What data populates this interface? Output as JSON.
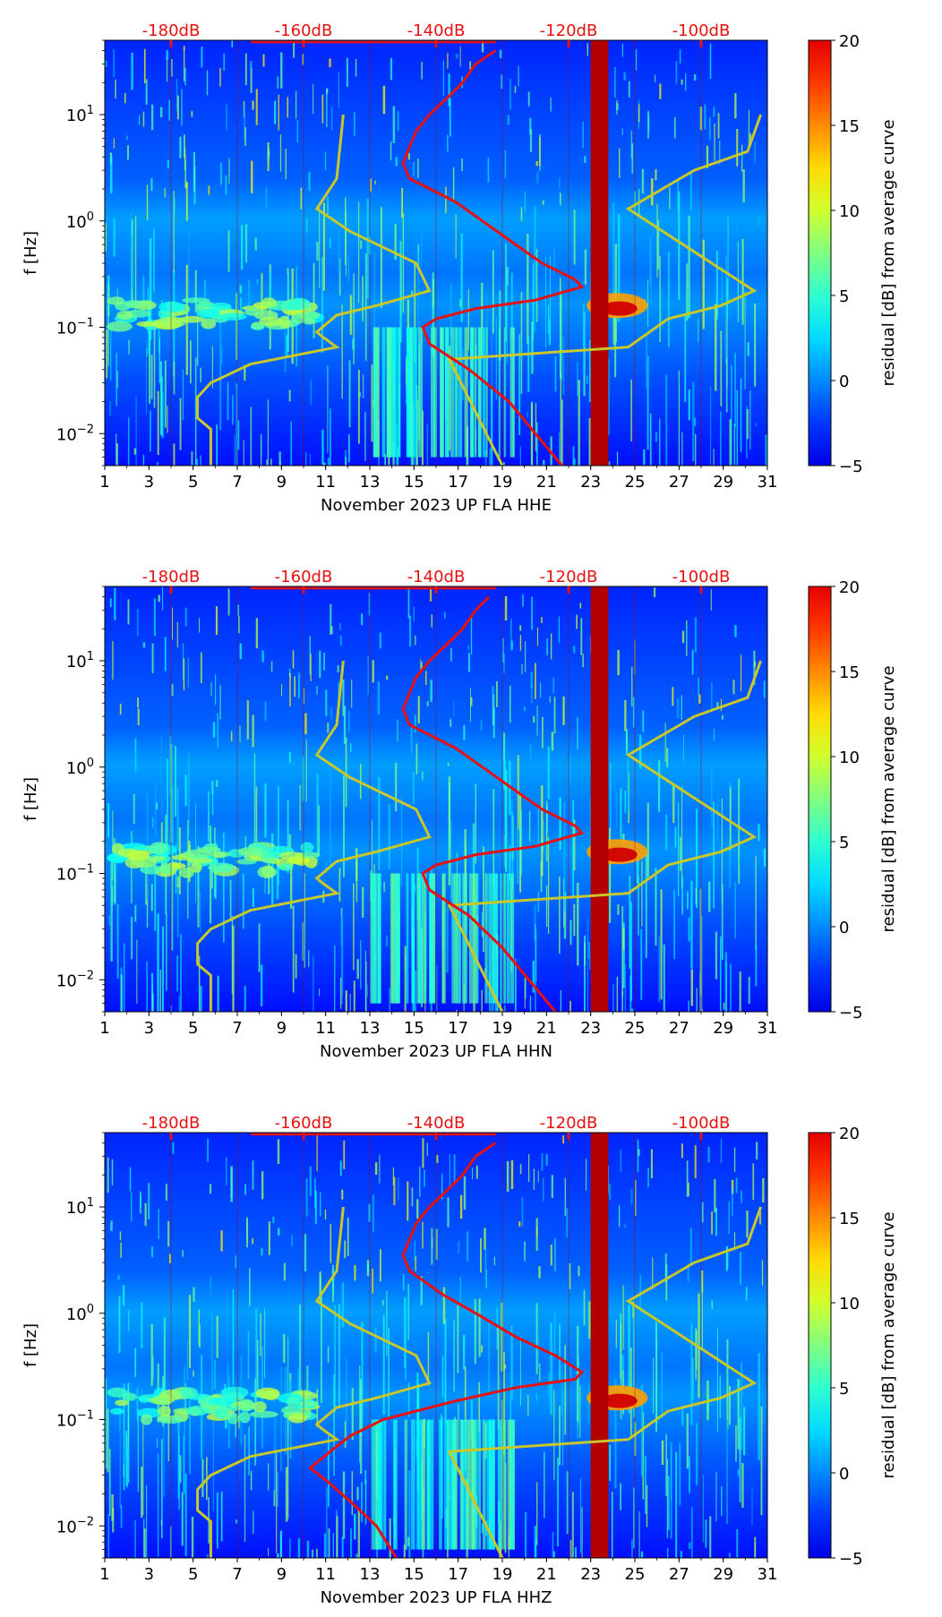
{
  "figure": {
    "background": "#ffffff"
  },
  "chart_data": [
    {
      "type": "heatmap",
      "xlabel": "November 2023 UP FLA  HHE",
      "ylabel": "f [Hz]",
      "x_ticks": [
        "1",
        "3",
        "5",
        "7",
        "9",
        "11",
        "13",
        "15",
        "17",
        "19",
        "21",
        "23",
        "25",
        "27",
        "29",
        "31"
      ],
      "x_range": [
        1,
        31
      ],
      "y_ticks": [
        "10^-2",
        "10^-1",
        "10^0",
        "10^1"
      ],
      "y_range": [
        0.005,
        50
      ],
      "y_scale": "log",
      "top_ticks": [
        "-180dB",
        "-160dB",
        "-140dB",
        "-120dB",
        "-100dB"
      ],
      "top_range_dB": [
        -190,
        -90
      ],
      "colorbar": {
        "label": "residual [dB] from average curve",
        "ticks": [
          "-5",
          "0",
          "5",
          "10",
          "15",
          "20"
        ],
        "range": [
          -5,
          20
        ]
      },
      "blocked_day": 23,
      "noise_model_high": [
        [
          10,
          -154
        ],
        [
          2.5,
          -155
        ],
        [
          1.3,
          -158
        ],
        [
          0.8,
          -153
        ],
        [
          0.4,
          -143
        ],
        [
          0.22,
          -141
        ],
        [
          0.16,
          -149
        ],
        [
          0.13,
          -155
        ],
        [
          0.09,
          -158
        ],
        [
          0.08,
          -157
        ],
        [
          0.065,
          -155
        ],
        [
          0.045,
          -168
        ],
        [
          0.03,
          -174
        ],
        [
          0.022,
          -176
        ],
        [
          0.014,
          -176
        ],
        [
          0.011,
          -174
        ],
        [
          0.008,
          -174
        ],
        [
          0.005,
          -174
        ]
      ],
      "noise_model_low": [
        [
          10,
          -91
        ],
        [
          4.5,
          -93
        ],
        [
          3,
          -101
        ],
        [
          1.3,
          -111
        ],
        [
          0.22,
          -92
        ],
        [
          0.16,
          -97
        ],
        [
          0.12,
          -105
        ],
        [
          0.065,
          -111
        ],
        [
          0.05,
          -138
        ],
        [
          0.005,
          -130
        ]
      ],
      "mean_curve": [
        [
          40,
          -131
        ],
        [
          30,
          -134
        ],
        [
          20,
          -136
        ],
        [
          15,
          -138
        ],
        [
          10,
          -141
        ],
        [
          7,
          -143
        ],
        [
          5,
          -144
        ],
        [
          3.5,
          -145
        ],
        [
          2.5,
          -144
        ],
        [
          1.5,
          -137
        ],
        [
          1,
          -133
        ],
        [
          0.6,
          -128
        ],
        [
          0.4,
          -124
        ],
        [
          0.28,
          -119
        ],
        [
          0.24,
          -118
        ],
        [
          0.18,
          -125
        ],
        [
          0.15,
          -134
        ],
        [
          0.12,
          -140
        ],
        [
          0.1,
          -142
        ],
        [
          0.07,
          -141
        ],
        [
          0.04,
          -135
        ],
        [
          0.02,
          -129
        ],
        [
          0.01,
          -125
        ],
        [
          0.005,
          -121
        ]
      ]
    },
    {
      "type": "heatmap",
      "xlabel": "November 2023 UP FLA  HHN",
      "ylabel": "f [Hz]",
      "x_ticks": [
        "1",
        "3",
        "5",
        "7",
        "9",
        "11",
        "13",
        "15",
        "17",
        "19",
        "21",
        "23",
        "25",
        "27",
        "29",
        "31"
      ],
      "x_range": [
        1,
        31
      ],
      "y_ticks": [
        "10^-2",
        "10^-1",
        "10^0",
        "10^1"
      ],
      "y_range": [
        0.005,
        50
      ],
      "y_scale": "log",
      "top_ticks": [
        "-180dB",
        "-160dB",
        "-140dB",
        "-120dB",
        "-100dB"
      ],
      "top_range_dB": [
        -190,
        -90
      ],
      "colorbar": {
        "label": "residual [dB] from average curve",
        "ticks": [
          "-5",
          "0",
          "5",
          "10",
          "15",
          "20"
        ],
        "range": [
          -5,
          20
        ]
      },
      "blocked_day": 23,
      "noise_model_high": [
        [
          10,
          -154
        ],
        [
          2.5,
          -155
        ],
        [
          1.3,
          -158
        ],
        [
          0.8,
          -153
        ],
        [
          0.4,
          -143
        ],
        [
          0.22,
          -141
        ],
        [
          0.16,
          -149
        ],
        [
          0.13,
          -155
        ],
        [
          0.09,
          -158
        ],
        [
          0.08,
          -157
        ],
        [
          0.065,
          -155
        ],
        [
          0.045,
          -168
        ],
        [
          0.03,
          -174
        ],
        [
          0.022,
          -176
        ],
        [
          0.014,
          -176
        ],
        [
          0.011,
          -174
        ],
        [
          0.008,
          -174
        ],
        [
          0.005,
          -174
        ]
      ],
      "noise_model_low": [
        [
          10,
          -91
        ],
        [
          4.5,
          -93
        ],
        [
          3,
          -101
        ],
        [
          1.3,
          -111
        ],
        [
          0.22,
          -92
        ],
        [
          0.16,
          -97
        ],
        [
          0.12,
          -105
        ],
        [
          0.065,
          -111
        ],
        [
          0.05,
          -138
        ],
        [
          0.005,
          -130
        ]
      ],
      "mean_curve": [
        [
          40,
          -132
        ],
        [
          30,
          -134
        ],
        [
          20,
          -136
        ],
        [
          15,
          -138
        ],
        [
          10,
          -141
        ],
        [
          7,
          -143
        ],
        [
          5,
          -144
        ],
        [
          3.5,
          -145
        ],
        [
          2.5,
          -144
        ],
        [
          1.5,
          -137
        ],
        [
          1,
          -133
        ],
        [
          0.6,
          -128
        ],
        [
          0.4,
          -124
        ],
        [
          0.28,
          -119
        ],
        [
          0.24,
          -118
        ],
        [
          0.18,
          -125
        ],
        [
          0.15,
          -134
        ],
        [
          0.12,
          -140
        ],
        [
          0.1,
          -142
        ],
        [
          0.07,
          -141
        ],
        [
          0.04,
          -135
        ],
        [
          0.02,
          -130
        ],
        [
          0.01,
          -126
        ],
        [
          0.005,
          -122
        ]
      ]
    },
    {
      "type": "heatmap",
      "xlabel": "November 2023 UP FLA  HHZ",
      "ylabel": "f [Hz]",
      "x_ticks": [
        "1",
        "3",
        "5",
        "7",
        "9",
        "11",
        "13",
        "15",
        "17",
        "19",
        "21",
        "23",
        "25",
        "27",
        "29",
        "31"
      ],
      "x_range": [
        1,
        31
      ],
      "y_ticks": [
        "10^-2",
        "10^-1",
        "10^0",
        "10^1"
      ],
      "y_range": [
        0.005,
        50
      ],
      "y_scale": "log",
      "top_ticks": [
        "-180dB",
        "-160dB",
        "-140dB",
        "-120dB",
        "-100dB"
      ],
      "top_range_dB": [
        -190,
        -90
      ],
      "colorbar": {
        "label": "residual [dB] from average curve",
        "ticks": [
          "-5",
          "0",
          "5",
          "10",
          "15",
          "20"
        ],
        "range": [
          -5,
          20
        ]
      },
      "blocked_day": 23,
      "noise_model_high": [
        [
          10,
          -154
        ],
        [
          2.5,
          -155
        ],
        [
          1.3,
          -158
        ],
        [
          0.8,
          -153
        ],
        [
          0.4,
          -143
        ],
        [
          0.22,
          -141
        ],
        [
          0.16,
          -149
        ],
        [
          0.13,
          -155
        ],
        [
          0.09,
          -158
        ],
        [
          0.08,
          -157
        ],
        [
          0.065,
          -155
        ],
        [
          0.045,
          -168
        ],
        [
          0.03,
          -174
        ],
        [
          0.022,
          -176
        ],
        [
          0.014,
          -176
        ],
        [
          0.011,
          -174
        ],
        [
          0.008,
          -174
        ],
        [
          0.005,
          -174
        ]
      ],
      "noise_model_low": [
        [
          10,
          -91
        ],
        [
          4.5,
          -93
        ],
        [
          3,
          -101
        ],
        [
          1.3,
          -111
        ],
        [
          0.22,
          -92
        ],
        [
          0.16,
          -97
        ],
        [
          0.12,
          -105
        ],
        [
          0.065,
          -111
        ],
        [
          0.05,
          -138
        ],
        [
          0.005,
          -130
        ]
      ],
      "mean_curve": [
        [
          40,
          -131
        ],
        [
          30,
          -134
        ],
        [
          20,
          -136
        ],
        [
          15,
          -138
        ],
        [
          10,
          -141
        ],
        [
          7,
          -143
        ],
        [
          5,
          -144
        ],
        [
          3.5,
          -145
        ],
        [
          2.5,
          -144
        ],
        [
          1.5,
          -139
        ],
        [
          1,
          -134
        ],
        [
          0.6,
          -128
        ],
        [
          0.4,
          -122
        ],
        [
          0.28,
          -118
        ],
        [
          0.24,
          -119
        ],
        [
          0.2,
          -128
        ],
        [
          0.15,
          -137
        ],
        [
          0.1,
          -148
        ],
        [
          0.07,
          -153
        ],
        [
          0.05,
          -156
        ],
        [
          0.035,
          -159
        ],
        [
          0.025,
          -156
        ],
        [
          0.015,
          -152
        ],
        [
          0.01,
          -149
        ],
        [
          0.005,
          -146
        ]
      ]
    }
  ]
}
